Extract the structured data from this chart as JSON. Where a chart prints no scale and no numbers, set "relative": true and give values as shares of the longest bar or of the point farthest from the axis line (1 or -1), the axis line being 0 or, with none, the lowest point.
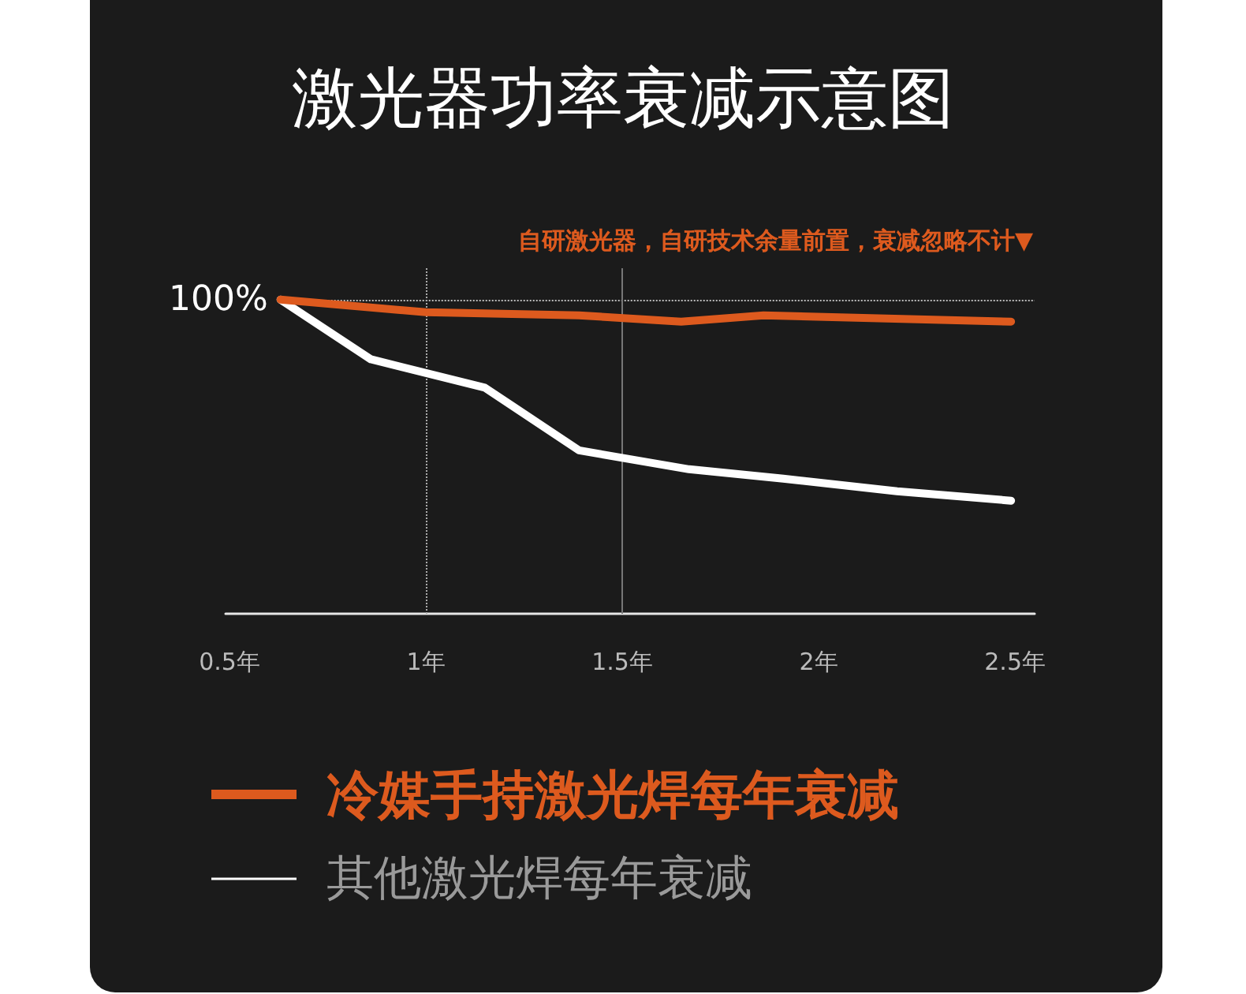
{
  "chart_data": {
    "type": "line",
    "title": "激光器功率衰减示意图",
    "annotations": [
      "自研激光器，自研技术余量前置，衰减忽略不计▼"
    ],
    "relative": true,
    "xlim": [
      0.49,
      2.55
    ],
    "xticks": [
      {
        "value": 0.5,
        "label": "0.5年"
      },
      {
        "value": 1,
        "label": "1年"
      },
      {
        "value": 1.5,
        "label": "1.5年"
      },
      {
        "value": 2,
        "label": "2年"
      },
      {
        "value": 2.5,
        "label": "2.5年"
      }
    ],
    "series": [
      {
        "name": "冷媒手持激光焊每年衰减",
        "color": "#dd5a1e",
        "x": [
          0.63,
          1.0,
          1.39,
          1.65,
          1.86,
          2.49
        ],
        "values": [
          1,
          0.96,
          0.95,
          0.93,
          0.95,
          0.93
        ]
      },
      {
        "name": "其他激光焊每年衰减",
        "color": "#ffffff",
        "x": [
          0.63,
          0.86,
          1.15,
          1.39,
          1.67,
          1.91,
          2.2,
          2.49
        ],
        "values": [
          1,
          0.81,
          0.72,
          0.52,
          0.46,
          0.43,
          0.39,
          0.36
        ]
      }
    ],
    "ref_lines": [
      {
        "axis": "y",
        "value": 1,
        "label": "100%",
        "color": "#bbbbbb",
        "line_style": "dotted"
      },
      {
        "axis": "x",
        "value": 1,
        "color": "#aaaaaa",
        "line_style": "dotted"
      },
      {
        "axis": "x",
        "value": 1.5,
        "color": "#777777",
        "line_style": "solid"
      }
    ],
    "grid": false,
    "legend": "bottom"
  }
}
